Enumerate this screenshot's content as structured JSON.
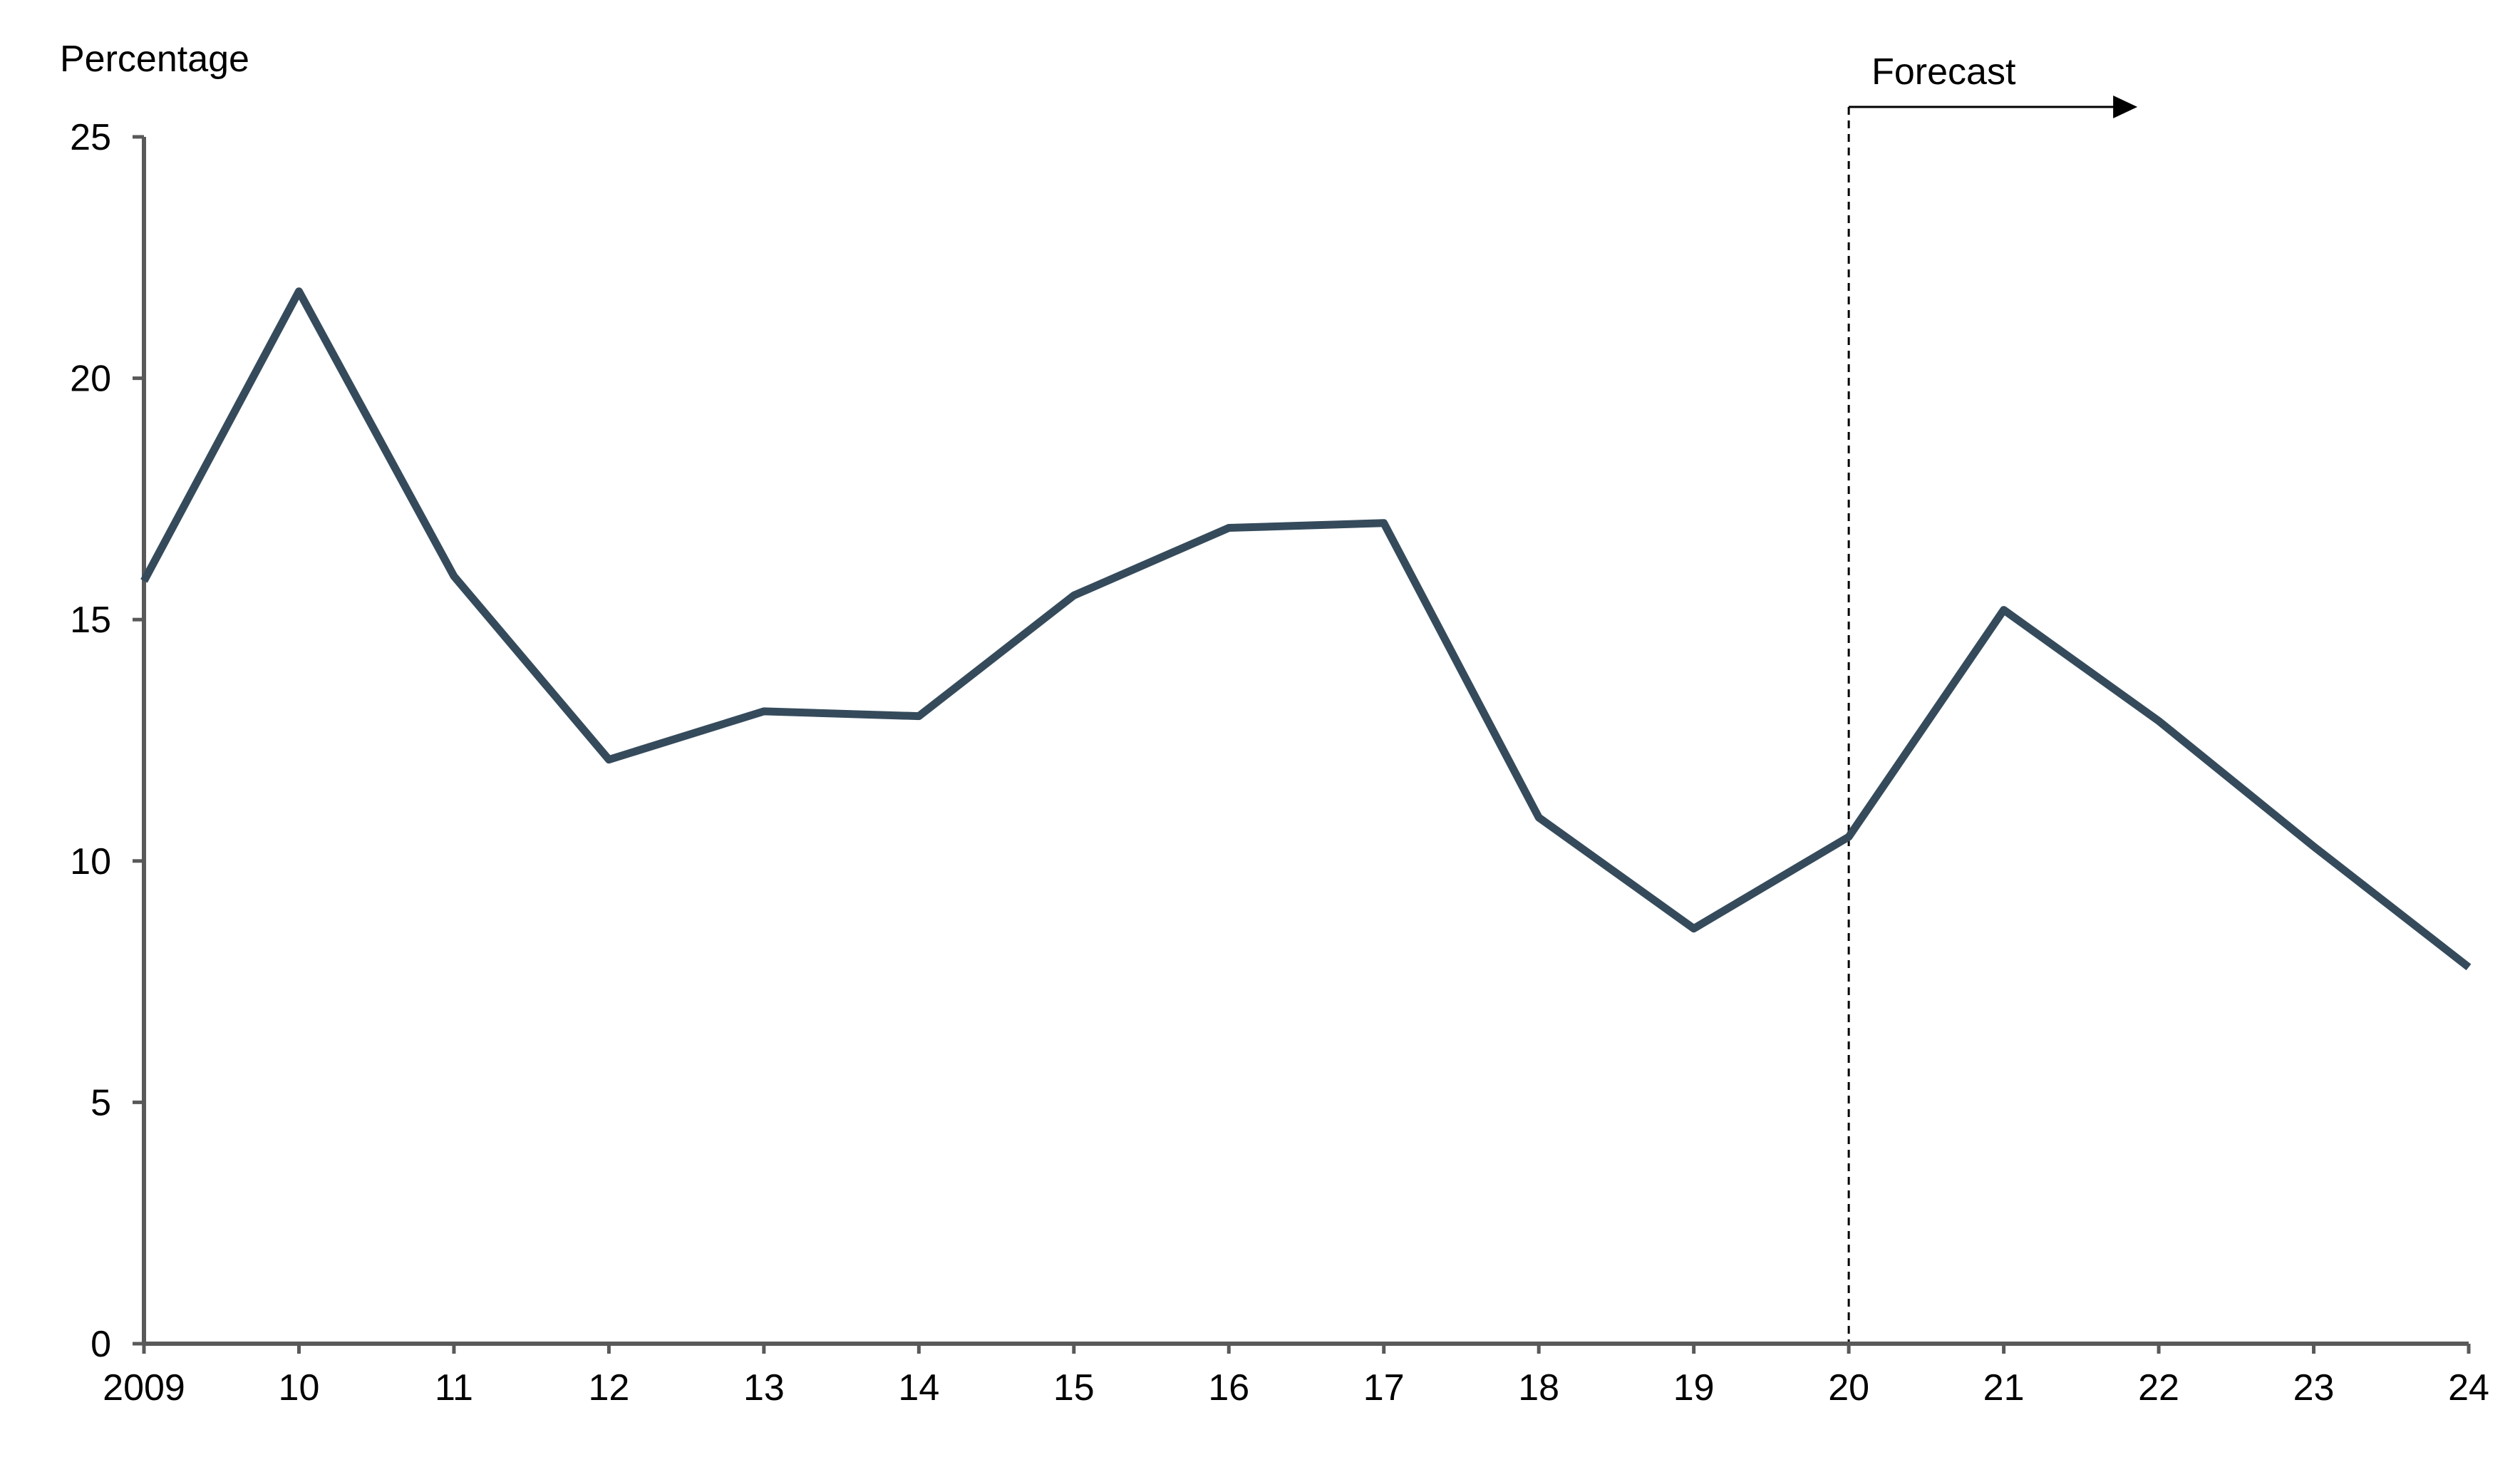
{
  "chart_data": {
    "type": "line",
    "ylabel": "Percentage",
    "ylim": [
      0,
      25
    ],
    "yticks": [
      0,
      5,
      10,
      15,
      20,
      25
    ],
    "xlim": [
      2009,
      2024
    ],
    "x": [
      2009,
      2010,
      2011,
      2012,
      2013,
      2014,
      2015,
      2016,
      2017,
      2018,
      2019,
      2020,
      2021,
      2022,
      2023,
      2024
    ],
    "x_tick_labels": [
      "2009",
      "10",
      "11",
      "12",
      "13",
      "14",
      "15",
      "16",
      "17",
      "18",
      "19",
      "20",
      "21",
      "22",
      "23",
      "24"
    ],
    "series": [
      {
        "color": "#354b5c",
        "values": [
          15.8,
          21.8,
          15.9,
          12.1,
          13.1,
          13.0,
          15.5,
          16.9,
          17.0,
          10.9,
          8.6,
          10.5,
          15.2,
          12.9,
          10.3,
          7.8
        ]
      }
    ],
    "annotations": [
      {
        "text": "Forecast",
        "x": 2020,
        "style": "dashed-vertical-line-with-right-arrow"
      }
    ],
    "grid": false,
    "legend": "none"
  }
}
